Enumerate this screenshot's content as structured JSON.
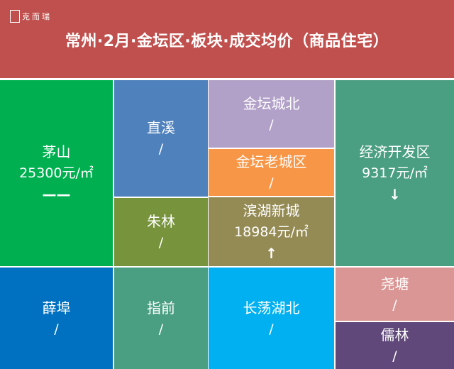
{
  "header": {
    "logo_text": "克而瑞",
    "logo_mark": "易居",
    "title": "常州·2月·金坛区·板块·成交均价（商品住宅）",
    "color": "#c0504d"
  },
  "cells": [
    {
      "name": "茅山",
      "value": "25300元/㎡",
      "trend": "——",
      "trend_icon": "dash-icon",
      "color": "#00b050"
    },
    {
      "name": "直溪",
      "value": "/",
      "trend": "",
      "color": "#4f81bd"
    },
    {
      "name": "朱林",
      "value": "/",
      "trend": "",
      "color": "#77933c"
    },
    {
      "name": "金坛城北",
      "value": "/",
      "trend": "",
      "color": "#b1a0c7"
    },
    {
      "name": "金坛老城区",
      "value": "/",
      "trend": "",
      "color": "#f79646"
    },
    {
      "name": "滨湖新城",
      "value": "18984元/㎡",
      "trend": "↑",
      "trend_icon": "arrow-up-icon",
      "color": "#948a54"
    },
    {
      "name": "经济开发区",
      "value": "9317元/㎡",
      "trend": "↓",
      "trend_icon": "arrow-down-icon",
      "color": "#4a9e82"
    },
    {
      "name": "薛埠",
      "value": "/",
      "trend": "",
      "color": "#0070c0"
    },
    {
      "name": "指前",
      "value": "/",
      "trend": "",
      "color": "#4a9e82"
    },
    {
      "name": "长荡湖北",
      "value": "/",
      "trend": "",
      "color": "#00b0f0"
    },
    {
      "name": "尧塘",
      "value": "/",
      "trend": "",
      "color": "#da9694"
    },
    {
      "name": "儒林",
      "value": "/",
      "trend": "",
      "color": "#60497a"
    }
  ]
}
